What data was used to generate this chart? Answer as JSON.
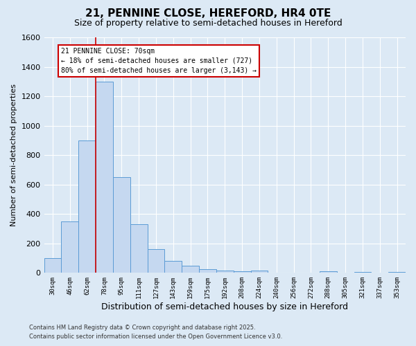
{
  "title": "21, PENNINE CLOSE, HEREFORD, HR4 0TE",
  "subtitle": "Size of property relative to semi-detached houses in Hereford",
  "xlabel": "Distribution of semi-detached houses by size in Hereford",
  "ylabel": "Number of semi-detached properties",
  "bar_labels": [
    "30sqm",
    "46sqm",
    "62sqm",
    "78sqm",
    "95sqm",
    "111sqm",
    "127sqm",
    "143sqm",
    "159sqm",
    "175sqm",
    "192sqm",
    "208sqm",
    "224sqm",
    "240sqm",
    "256sqm",
    "272sqm",
    "288sqm",
    "305sqm",
    "321sqm",
    "337sqm",
    "353sqm"
  ],
  "bar_values": [
    100,
    350,
    900,
    1300,
    650,
    330,
    160,
    80,
    50,
    25,
    15,
    10,
    15,
    0,
    0,
    0,
    10,
    0,
    5,
    0,
    5
  ],
  "bar_color": "#c5d8f0",
  "bar_edge_color": "#5b9bd5",
  "vline_color": "#cc0000",
  "annotation_title": "21 PENNINE CLOSE: 70sqm",
  "annotation_line1": "← 18% of semi-detached houses are smaller (727)",
  "annotation_line2": "80% of semi-detached houses are larger (3,143) →",
  "annotation_box_color": "#ffffff",
  "annotation_box_edge": "#cc0000",
  "ylim": [
    0,
    1600
  ],
  "footnote1": "Contains HM Land Registry data © Crown copyright and database right 2025.",
  "footnote2": "Contains public sector information licensed under the Open Government Licence v3.0.",
  "background_color": "#dce9f5",
  "grid_color": "#ffffff",
  "title_fontsize": 11,
  "subtitle_fontsize": 9,
  "ylabel_fontsize": 8,
  "xlabel_fontsize": 9
}
